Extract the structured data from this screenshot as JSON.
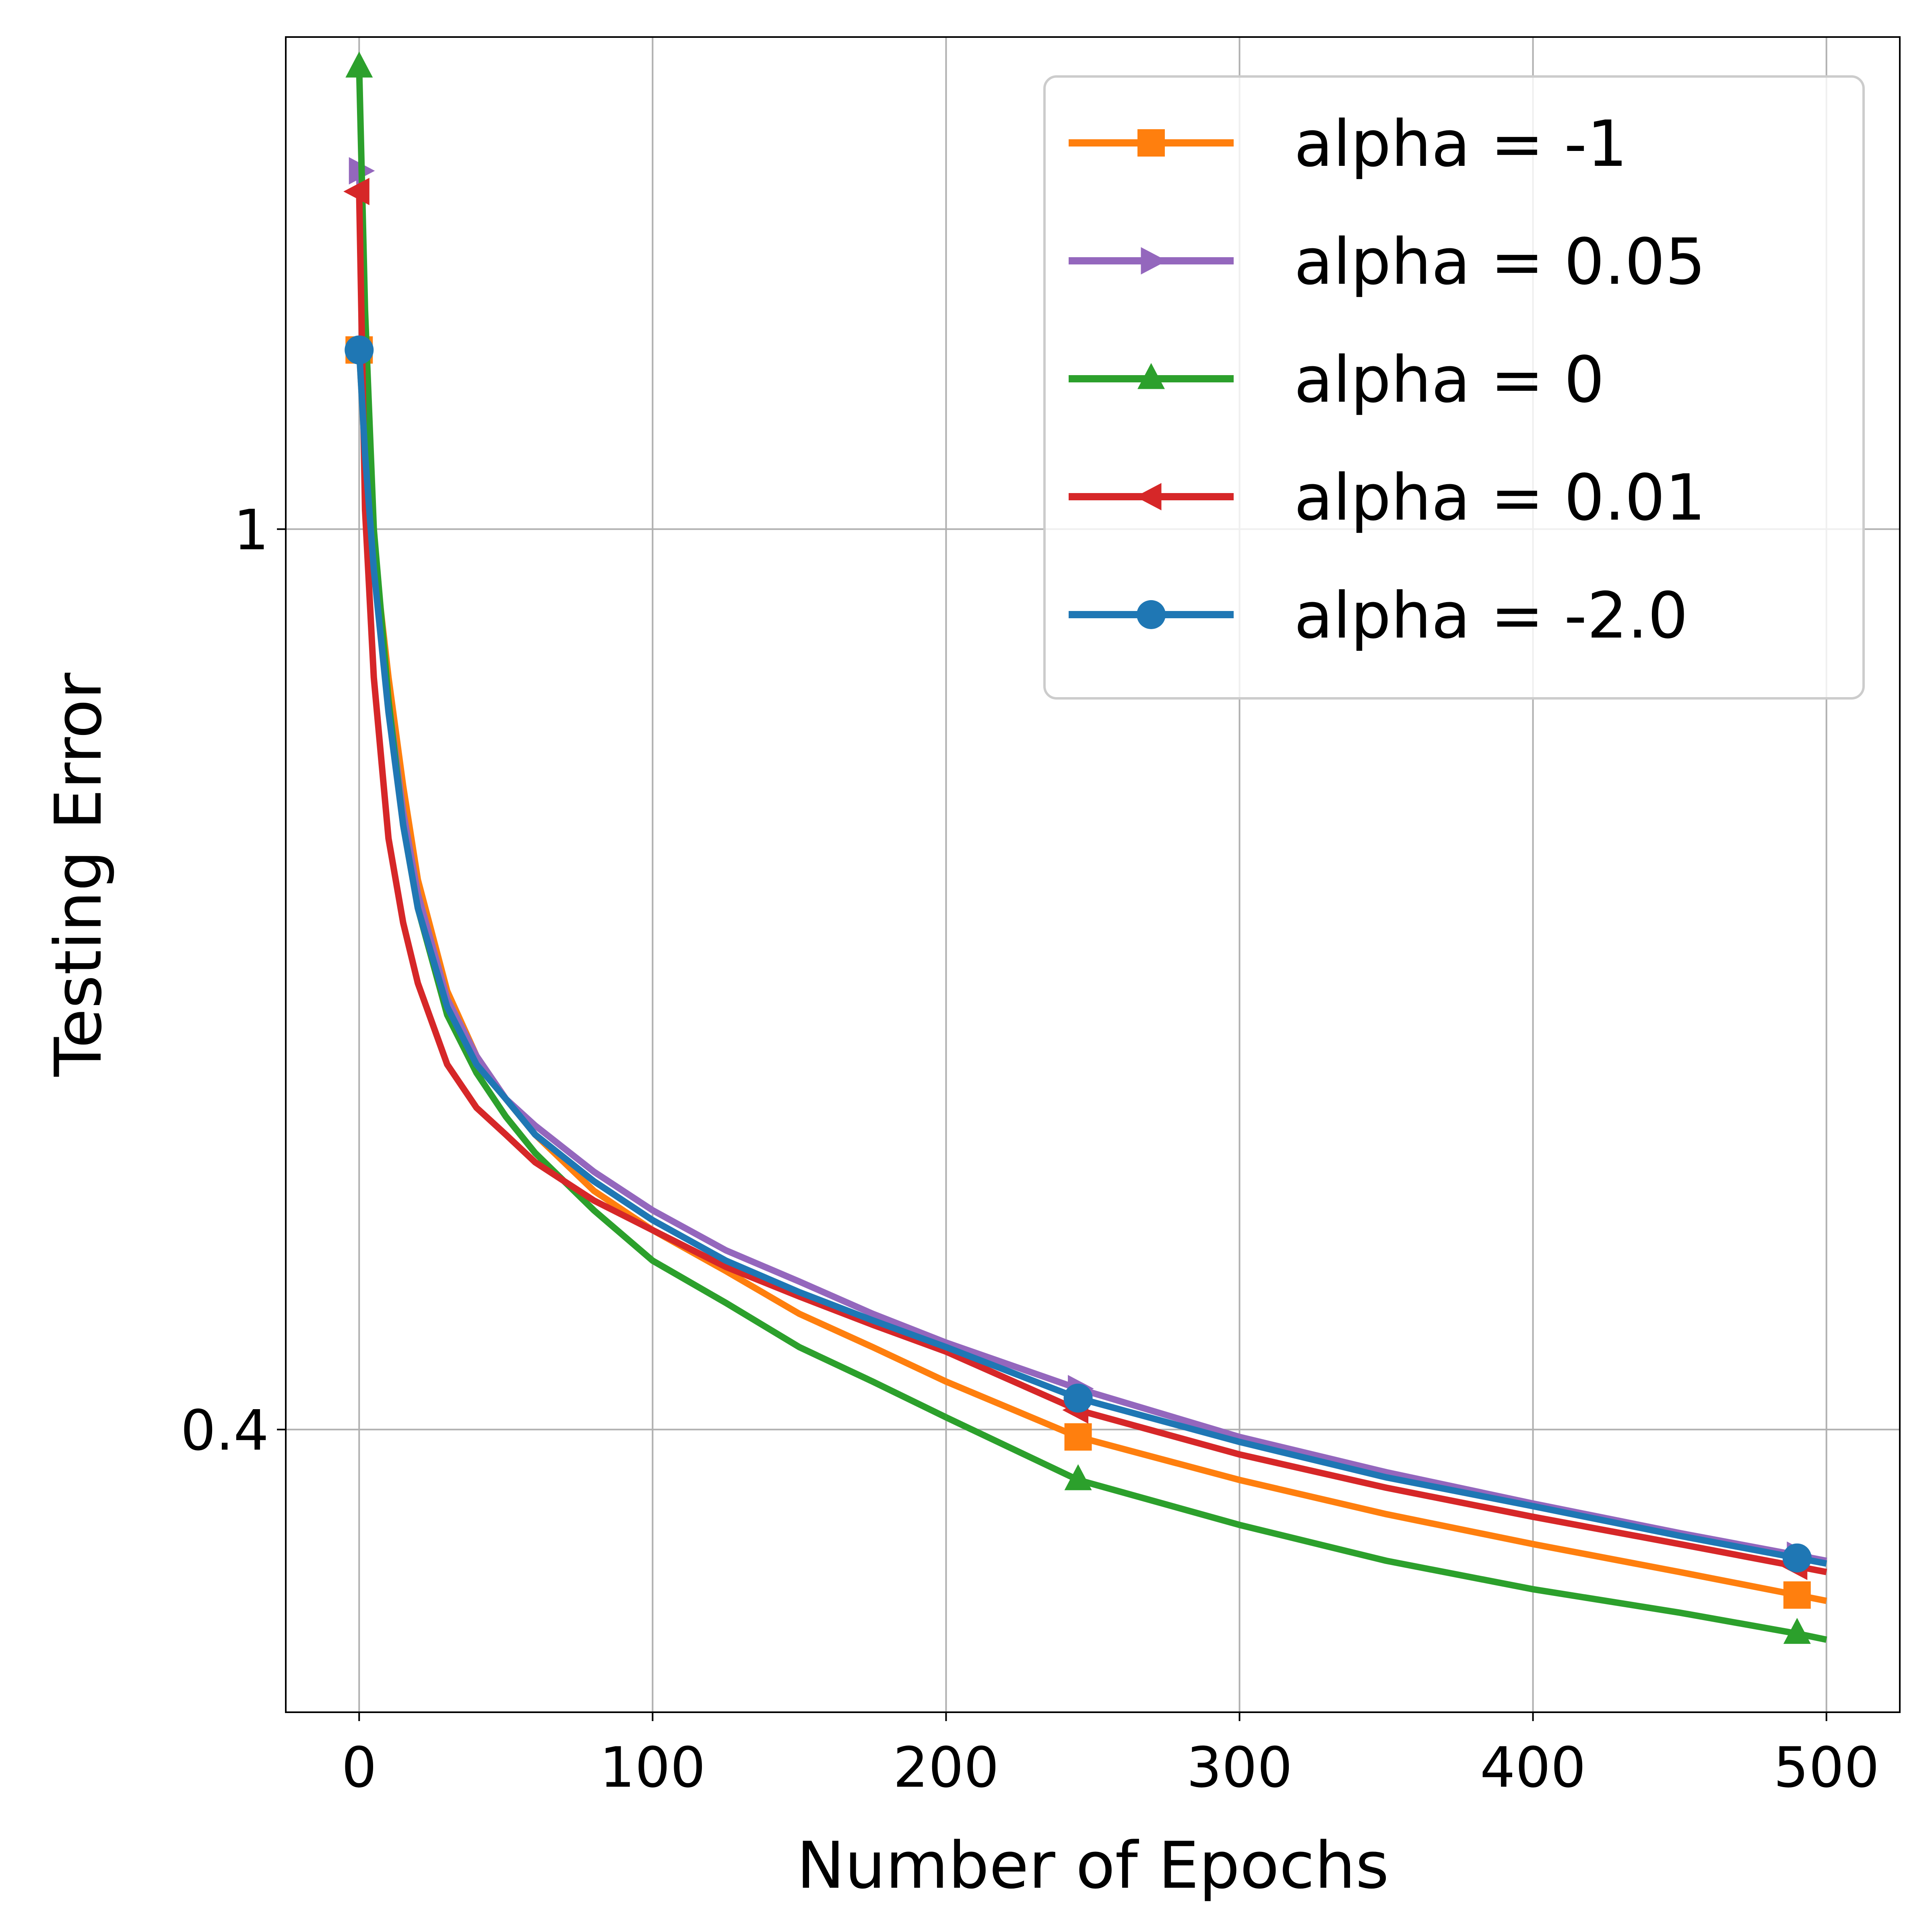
{
  "chart_data": {
    "type": "line",
    "title": "",
    "xlabel": "Number of Epochs",
    "ylabel": "Testing Error",
    "xlim": [
      -25,
      525
    ],
    "ylim": [
      0.3,
      1.65
    ],
    "xticks": [
      0,
      100,
      200,
      300,
      400,
      500
    ],
    "xtick_labels": [
      "0",
      "100",
      "200",
      "300",
      "400",
      "500"
    ],
    "yticks": [
      0.4,
      1.0
    ],
    "ytick_labels": [
      "0.4",
      "1"
    ],
    "grid": true,
    "legend": {
      "position": "top-right",
      "entries": [
        "alpha = -1",
        "alpha = 0.05",
        "alpha = 0",
        "alpha = 0.01",
        "alpha = -2.0"
      ]
    },
    "x": [
      0,
      2,
      5,
      10,
      15,
      20,
      30,
      40,
      50,
      60,
      80,
      100,
      125,
      150,
      175,
      200,
      245,
      300,
      350,
      400,
      450,
      490,
      500
    ],
    "series": [
      {
        "name": "alpha = -1",
        "color": "#ff7f0e",
        "marker": "square",
        "marker_x": [
          0,
          245,
          490
        ],
        "values": [
          1.2,
          1.08,
          0.98,
          0.86,
          0.77,
          0.7,
          0.625,
          0.585,
          0.56,
          0.54,
          0.51,
          0.49,
          0.47,
          0.45,
          0.435,
          0.42,
          0.397,
          0.38,
          0.367,
          0.356,
          0.346,
          0.338,
          0.336
        ]
      },
      {
        "name": "alpha = 0.05",
        "color": "#9467bd",
        "marker": "triangle-right",
        "marker_x": [
          0,
          245,
          490
        ],
        "values": [
          1.44,
          1.15,
          0.98,
          0.84,
          0.75,
          0.69,
          0.62,
          0.585,
          0.56,
          0.545,
          0.52,
          0.5,
          0.48,
          0.465,
          0.45,
          0.437,
          0.417,
          0.397,
          0.383,
          0.371,
          0.36,
          0.352,
          0.35
        ]
      },
      {
        "name": "alpha = 0",
        "color": "#2ca02c",
        "marker": "triangle-up",
        "marker_x": [
          0,
          245,
          490
        ],
        "values": [
          1.6,
          1.25,
          1.0,
          0.84,
          0.74,
          0.68,
          0.61,
          0.575,
          0.55,
          0.53,
          0.5,
          0.475,
          0.455,
          0.435,
          0.42,
          0.405,
          0.38,
          0.363,
          0.35,
          0.34,
          0.332,
          0.325,
          0.323
        ]
      },
      {
        "name": "alpha = 0.01",
        "color": "#d62728",
        "marker": "triangle-left",
        "marker_x": [
          0,
          245,
          490
        ],
        "values": [
          1.41,
          1.02,
          0.86,
          0.73,
          0.67,
          0.63,
          0.58,
          0.555,
          0.54,
          0.525,
          0.505,
          0.49,
          0.472,
          0.458,
          0.445,
          0.433,
          0.408,
          0.39,
          0.377,
          0.366,
          0.356,
          0.348,
          0.346
        ]
      },
      {
        "name": "alpha = -2.0",
        "color": "#1f77b4",
        "marker": "circle",
        "marker_x": [
          0,
          245,
          490
        ],
        "values": [
          1.2,
          1.08,
          0.96,
          0.83,
          0.74,
          0.68,
          0.615,
          0.58,
          0.56,
          0.54,
          0.515,
          0.495,
          0.475,
          0.46,
          0.447,
          0.435,
          0.413,
          0.395,
          0.381,
          0.37,
          0.359,
          0.351,
          0.349
        ]
      }
    ]
  }
}
